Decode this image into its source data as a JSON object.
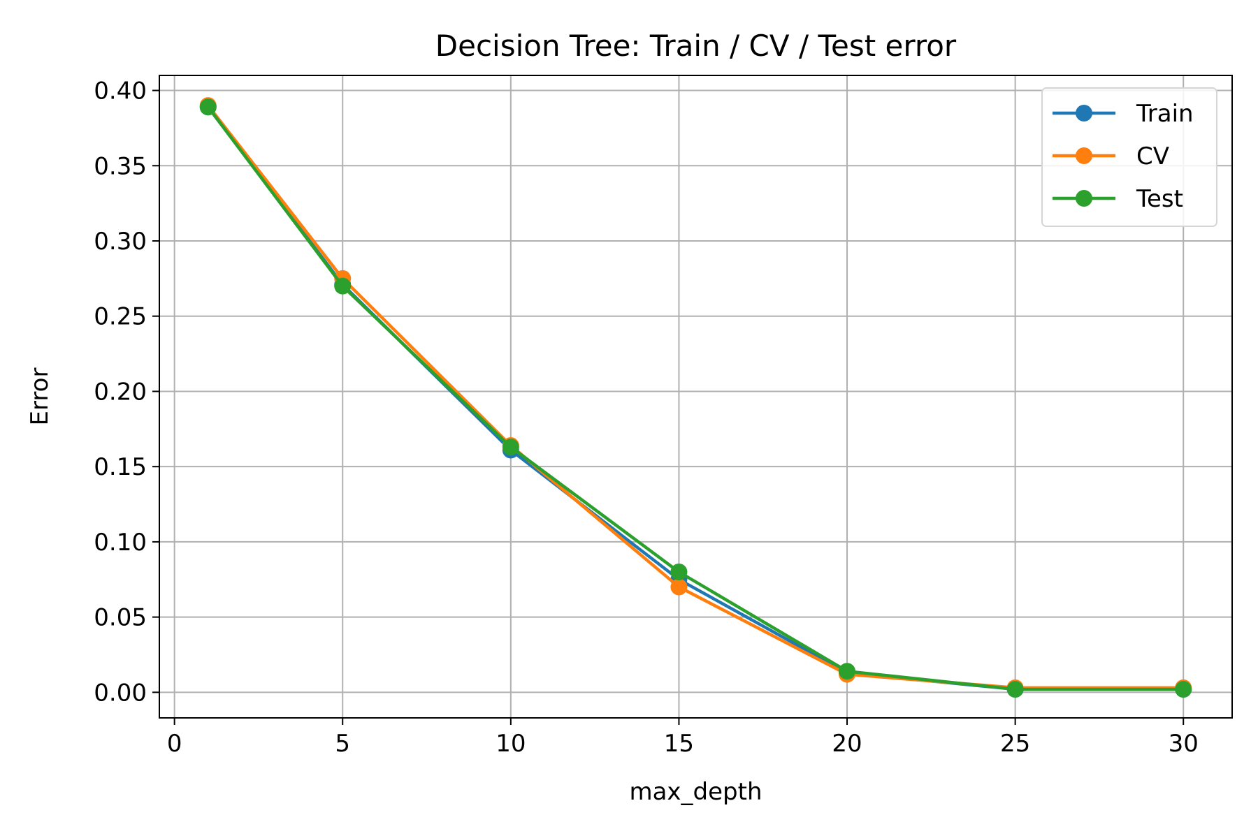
{
  "chart_data": {
    "type": "line",
    "title": "Decision Tree: Train / CV / Test error",
    "xlabel": "max_depth",
    "ylabel": "Error",
    "xlim": [
      -0.45,
      31.45
    ],
    "ylim": [
      -0.017,
      0.41
    ],
    "xticks": [
      0,
      5,
      10,
      15,
      20,
      25,
      30
    ],
    "yticks": [
      0.0,
      0.05,
      0.1,
      0.15,
      0.2,
      0.25,
      0.3,
      0.35,
      0.4
    ],
    "grid": true,
    "legend_position": "top-right",
    "x": [
      1,
      5,
      10,
      15,
      20,
      25,
      30
    ],
    "series": [
      {
        "name": "Train",
        "color": "#1f77b4",
        "values": [
          0.389,
          0.271,
          0.161,
          0.075,
          0.013,
          0.002,
          0.002
        ]
      },
      {
        "name": "CV",
        "color": "#ff7f0e",
        "values": [
          0.39,
          0.275,
          0.164,
          0.07,
          0.012,
          0.003,
          0.003
        ]
      },
      {
        "name": "Test",
        "color": "#2ca02c",
        "values": [
          0.389,
          0.27,
          0.163,
          0.08,
          0.014,
          0.002,
          0.002
        ]
      }
    ]
  }
}
